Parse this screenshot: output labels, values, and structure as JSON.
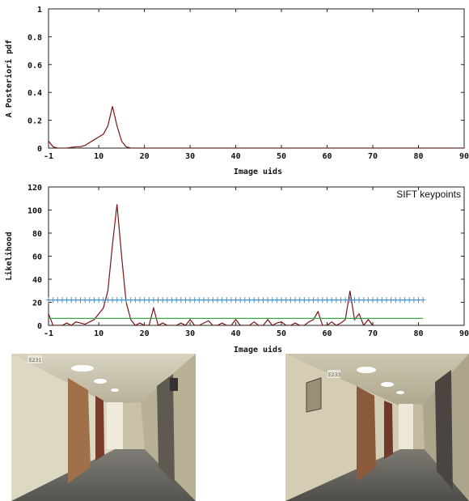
{
  "chart_data": [
    {
      "type": "line",
      "title": "",
      "xlabel": "Image uids",
      "ylabel": "A Posteriori pdf",
      "xlim": [
        -1,
        90
      ],
      "ylim": [
        0,
        1
      ],
      "xticks": [
        "-1",
        "10",
        "20",
        "30",
        "40",
        "50",
        "60",
        "70",
        "80",
        "90"
      ],
      "yticks": [
        "0",
        "0.2",
        "0.4",
        "0.6",
        "0.8",
        "1"
      ],
      "grid": false,
      "series": [
        {
          "color": "#7a1414",
          "x": [
            -1,
            0,
            1,
            2,
            3,
            4,
            5,
            6,
            7,
            8,
            9,
            10,
            11,
            12,
            13,
            14,
            15,
            16,
            17,
            18,
            90
          ],
          "y": [
            0.05,
            0.01,
            0.0,
            0.0,
            0.0,
            0.005,
            0.01,
            0.01,
            0.02,
            0.04,
            0.06,
            0.08,
            0.1,
            0.16,
            0.3,
            0.16,
            0.05,
            0.01,
            0.0,
            0.0,
            0.0
          ]
        }
      ]
    },
    {
      "type": "line",
      "title": "",
      "xlabel": "Image uids",
      "ylabel": "Likelihood",
      "xlim": [
        -1,
        90
      ],
      "ylim": [
        0,
        120
      ],
      "xticks": [
        "-1",
        "10",
        "20",
        "30",
        "40",
        "50",
        "60",
        "70",
        "80",
        "90"
      ],
      "yticks": [
        "0",
        "20",
        "40",
        "60",
        "80",
        "100",
        "120"
      ],
      "grid": false,
      "legend": {
        "position": "top-right",
        "label": "SIFT keypoints"
      },
      "series": [
        {
          "color": "#7a1414",
          "x": [
            -1,
            0,
            1,
            2,
            3,
            4,
            5,
            6,
            7,
            8,
            9,
            10,
            11,
            12,
            13,
            14,
            15,
            16,
            17,
            18,
            19,
            20,
            21,
            22,
            23,
            24,
            25,
            26,
            27,
            28,
            29,
            30,
            31,
            32,
            33,
            34,
            35,
            36,
            37,
            38,
            39,
            40,
            41,
            42,
            43,
            44,
            45,
            46,
            47,
            48,
            49,
            50,
            51,
            52,
            53,
            54,
            55,
            56,
            57,
            58,
            59,
            60,
            61,
            62,
            63,
            64,
            65,
            66,
            67,
            68,
            69,
            70
          ],
          "y": [
            10,
            0,
            0,
            0,
            2,
            0,
            3,
            2,
            1,
            3,
            5,
            10,
            15,
            30,
            70,
            105,
            60,
            20,
            5,
            0,
            2,
            0,
            0,
            15,
            0,
            2,
            0,
            0,
            0,
            2,
            0,
            5,
            0,
            0,
            2,
            4,
            0,
            0,
            2,
            0,
            0,
            5,
            0,
            0,
            0,
            3,
            0,
            0,
            5,
            0,
            2,
            3,
            0,
            0,
            2,
            0,
            0,
            3,
            5,
            12,
            0,
            0,
            3,
            0,
            2,
            5,
            30,
            5,
            10,
            0,
            5,
            0
          ]
        },
        {
          "color": "#4b93c9",
          "marker": "+",
          "x": [
            -1,
            0,
            1,
            2,
            3,
            4,
            5,
            6,
            7,
            8,
            9,
            10,
            11,
            12,
            13,
            14,
            15,
            16,
            17,
            18,
            19,
            20,
            21,
            22,
            23,
            24,
            25,
            26,
            27,
            28,
            29,
            30,
            31,
            32,
            33,
            34,
            35,
            36,
            37,
            38,
            39,
            40,
            41,
            42,
            43,
            44,
            45,
            46,
            47,
            48,
            49,
            50,
            51,
            52,
            53,
            54,
            55,
            56,
            57,
            58,
            59,
            60,
            61,
            62,
            63,
            64,
            65,
            66,
            67,
            68,
            69,
            70,
            71,
            72,
            73,
            74,
            75,
            76,
            77,
            78,
            79,
            80,
            81
          ],
          "y": [
            22,
            22,
            22,
            22,
            22,
            22,
            22,
            22,
            22,
            22,
            22,
            22,
            22,
            22,
            22,
            22,
            22,
            22,
            22,
            22,
            22,
            22,
            22,
            22,
            22,
            22,
            22,
            22,
            22,
            22,
            22,
            22,
            22,
            22,
            22,
            22,
            22,
            22,
            22,
            22,
            22,
            22,
            22,
            22,
            22,
            22,
            22,
            22,
            22,
            22,
            22,
            22,
            22,
            22,
            22,
            22,
            22,
            22,
            22,
            22,
            22,
            22,
            22,
            22,
            22,
            22,
            22,
            22,
            22,
            22,
            22,
            22,
            22,
            22,
            22,
            22,
            22,
            22,
            22,
            22,
            22,
            22,
            22
          ]
        },
        {
          "color": "#3fa34d",
          "x": [
            -1,
            81
          ],
          "y": [
            6,
            6
          ]
        }
      ]
    }
  ],
  "photos": [
    {
      "sign_text": "E231"
    },
    {
      "sign_text": "E233"
    }
  ]
}
